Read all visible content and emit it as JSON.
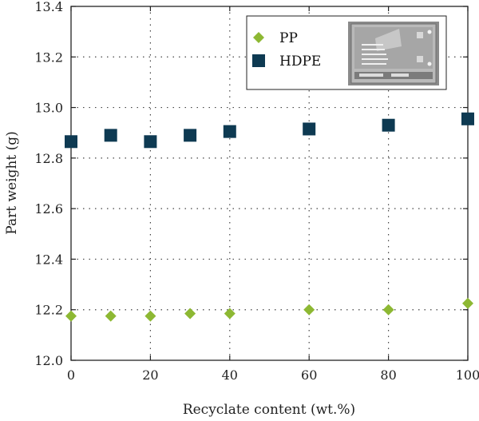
{
  "chart_data": {
    "type": "scatter",
    "xlabel": "Recyclate content (wt.%)",
    "ylabel": "Part weight (g)",
    "xlim": [
      0,
      100
    ],
    "ylim": [
      12.0,
      13.4
    ],
    "x_ticks": [
      0,
      20,
      40,
      60,
      80,
      100
    ],
    "y_ticks": [
      12.0,
      12.2,
      12.4,
      12.6,
      12.8,
      13.0,
      13.2,
      13.4
    ],
    "x_tick_labels": [
      "0",
      "20",
      "40",
      "60",
      "80",
      "100"
    ],
    "y_tick_labels": [
      "12.0",
      "12.2",
      "12.4",
      "12.6",
      "12.8",
      "13.0",
      "13.2",
      "13.4"
    ],
    "grid": true,
    "legend_position": "top-right",
    "series": [
      {
        "name": "PP",
        "marker": "diamond",
        "color": "#8db833",
        "x": [
          0,
          10,
          20,
          30,
          40,
          60,
          80,
          100
        ],
        "y": [
          12.175,
          12.175,
          12.175,
          12.185,
          12.185,
          12.2,
          12.2,
          12.225
        ]
      },
      {
        "name": "HDPE",
        "marker": "square",
        "color": "#0e3a52",
        "x": [
          0,
          10,
          20,
          30,
          40,
          60,
          80,
          100
        ],
        "y": [
          12.865,
          12.89,
          12.865,
          12.89,
          12.905,
          12.915,
          12.93,
          12.955
        ]
      }
    ],
    "inset_image": "molded-part-photo"
  }
}
